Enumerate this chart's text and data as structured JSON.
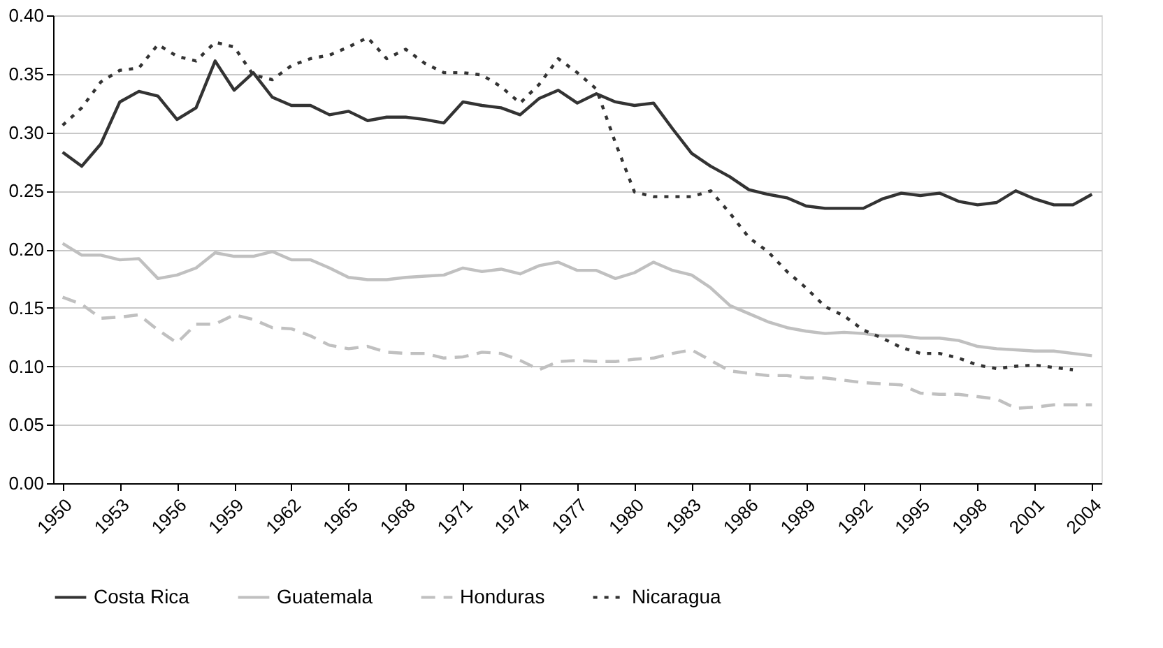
{
  "chart_data": {
    "type": "line",
    "x": [
      1950,
      1951,
      1952,
      1953,
      1954,
      1955,
      1956,
      1957,
      1958,
      1959,
      1960,
      1961,
      1962,
      1963,
      1964,
      1965,
      1966,
      1967,
      1968,
      1969,
      1970,
      1971,
      1972,
      1973,
      1974,
      1975,
      1976,
      1977,
      1978,
      1979,
      1980,
      1981,
      1982,
      1983,
      1984,
      1985,
      1986,
      1987,
      1988,
      1989,
      1990,
      1991,
      1992,
      1993,
      1994,
      1995,
      1996,
      1997,
      1998,
      1999,
      2000,
      2001,
      2002,
      2003,
      2004
    ],
    "xlim": [
      1949.5,
      2004.5
    ],
    "xticks": [
      1950,
      1953,
      1956,
      1959,
      1962,
      1965,
      1968,
      1971,
      1974,
      1977,
      1980,
      1983,
      1986,
      1989,
      1992,
      1995,
      1998,
      2001,
      2004
    ],
    "ylim": [
      0,
      0.4
    ],
    "yticks": [
      {
        "value": 0,
        "label": "0.00"
      },
      {
        "value": 0.05,
        "label": "0.05"
      },
      {
        "value": 0.1,
        "label": "0.10"
      },
      {
        "value": 0.15,
        "label": "0.15"
      },
      {
        "value": 0.2,
        "label": "0.20"
      },
      {
        "value": 0.25,
        "label": "0.25"
      },
      {
        "value": 0.3,
        "label": "0.30"
      },
      {
        "value": 0.35,
        "label": "0.35"
      },
      {
        "value": 0.4,
        "label": "0.40"
      }
    ],
    "grid": "y",
    "legend": "bottom",
    "marker": "none",
    "series": [
      {
        "name": "Costa Rica",
        "color": "#333333",
        "line_style": "solid",
        "values": [
          0.283,
          0.271,
          0.29,
          0.326,
          0.335,
          0.331,
          0.311,
          0.321,
          0.361,
          0.336,
          0.351,
          0.33,
          0.323,
          0.323,
          0.315,
          0.318,
          0.31,
          0.313,
          0.313,
          0.311,
          0.308,
          0.326,
          0.323,
          0.321,
          0.315,
          0.329,
          0.336,
          0.325,
          0.333,
          0.326,
          0.323,
          0.325,
          0.303,
          0.282,
          0.271,
          0.262,
          0.251,
          0.247,
          0.244,
          0.237,
          0.235,
          0.235,
          0.235,
          0.243,
          0.248,
          0.246,
          0.248,
          0.241,
          0.238,
          0.24,
          0.25,
          0.243,
          0.238,
          0.238,
          0.247
        ]
      },
      {
        "name": "Guatemala",
        "color": "#c0c0c0",
        "line_style": "solid",
        "values": [
          0.205,
          0.195,
          0.195,
          0.191,
          0.192,
          0.175,
          0.178,
          0.184,
          0.197,
          0.194,
          0.194,
          0.198,
          0.191,
          0.191,
          0.184,
          0.176,
          0.174,
          0.174,
          0.176,
          0.177,
          0.178,
          0.184,
          0.181,
          0.183,
          0.179,
          0.186,
          0.189,
          0.182,
          0.182,
          0.175,
          0.18,
          0.189,
          0.182,
          0.178,
          0.167,
          0.152,
          0.145,
          0.138,
          0.133,
          0.13,
          0.128,
          0.129,
          0.128,
          0.126,
          0.126,
          0.124,
          0.124,
          0.122,
          0.117,
          0.115,
          0.114,
          0.113,
          0.113,
          0.111,
          0.109
        ]
      },
      {
        "name": "Honduras",
        "color": "#c0c0c0",
        "line_style": "dashed",
        "values": [
          0.159,
          0.153,
          0.141,
          0.142,
          0.144,
          0.131,
          0.12,
          0.136,
          0.136,
          0.144,
          0.14,
          0.133,
          0.132,
          0.126,
          0.118,
          0.115,
          0.117,
          0.112,
          0.111,
          0.111,
          0.107,
          0.108,
          0.112,
          0.111,
          0.105,
          0.097,
          0.104,
          0.105,
          0.104,
          0.104,
          0.106,
          0.107,
          0.111,
          0.114,
          0.105,
          0.096,
          0.094,
          0.092,
          0.092,
          0.09,
          0.09,
          0.088,
          0.086,
          0.085,
          0.084,
          0.077,
          0.076,
          0.076,
          0.074,
          0.072,
          0.064,
          0.065,
          0.067,
          0.067,
          0.067
        ]
      },
      {
        "name": "Nicaragua",
        "color": "#333333",
        "line_style": "dotted",
        "values": [
          0.306,
          0.321,
          0.343,
          0.353,
          0.355,
          0.375,
          0.365,
          0.361,
          0.377,
          0.373,
          0.349,
          0.345,
          0.357,
          0.363,
          0.366,
          0.373,
          0.381,
          0.363,
          0.371,
          0.359,
          0.351,
          0.351,
          0.349,
          0.339,
          0.325,
          0.341,
          0.363,
          0.351,
          0.337,
          0.291,
          0.249,
          0.245,
          0.245,
          0.245,
          0.25,
          0.231,
          0.21,
          0.198,
          0.181,
          0.167,
          0.151,
          0.143,
          0.131,
          0.124,
          0.116,
          0.111,
          0.111,
          0.107,
          0.101,
          0.098,
          0.1,
          0.101,
          0.099,
          0.097,
          null
        ]
      }
    ]
  }
}
